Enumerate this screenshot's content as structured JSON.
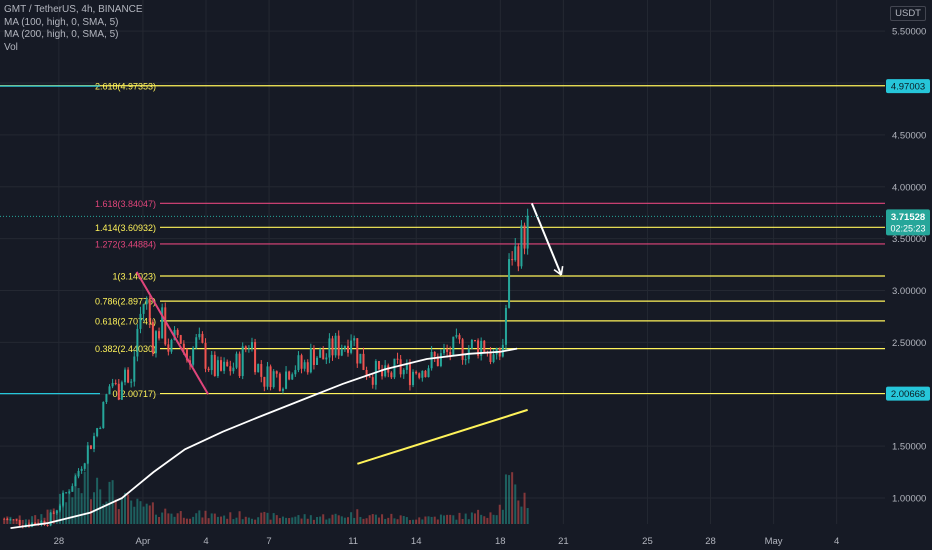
{
  "header": {
    "symbol_line": "GMT / TetherUS, 4h, BINANCE",
    "indicators": [
      "MA (100, high, 0, SMA, 5)",
      "MA (200, high, 0, SMA, 5)",
      "Vol"
    ],
    "currency": "USDT"
  },
  "colors": {
    "background": "#161a25",
    "grid": "#242832",
    "axis_text": "#b2b5be",
    "up_candle": "#26a69a",
    "down_candle": "#ef5350",
    "fib_yellow": "#fff35a",
    "fib_pink": "#e0457b",
    "cyan": "#26c6da",
    "white": "#ffffff"
  },
  "chart_data": {
    "type": "candlestick",
    "y_axis": {
      "ticks": [
        1.0,
        1.5,
        2.0,
        2.5,
        3.0,
        3.5,
        4.0,
        4.5,
        5.0,
        5.5
      ],
      "tick_labels": [
        "1.00000",
        "1.50000",
        "",
        "2.50000",
        "3.00000",
        "3.50000",
        "4.00000",
        "4.50000",
        "",
        "5.50000"
      ],
      "ylim": [
        0.75,
        5.8
      ]
    },
    "x_axis": {
      "ticks": [
        {
          "label": "28",
          "day": 28
        },
        {
          "label": "Apr",
          "day": 32
        },
        {
          "label": "4",
          "day": 35
        },
        {
          "label": "7",
          "day": 38
        },
        {
          "label": "11",
          "day": 42
        },
        {
          "label": "14",
          "day": 45
        },
        {
          "label": "18",
          "day": 49
        },
        {
          "label": "21",
          "day": 52
        },
        {
          "label": "25",
          "day": 56
        },
        {
          "label": "28",
          "day": 59
        },
        {
          "label": "May",
          "day": 62
        },
        {
          "label": "4",
          "day": 65
        }
      ],
      "xlim": [
        25.2,
        67.3
      ]
    },
    "fib_levels": [
      {
        "label": "2.618(4.97353)",
        "value": 4.97353,
        "color": "yellow"
      },
      {
        "label": "1.618(3.84047)",
        "value": 3.84047,
        "color": "pink"
      },
      {
        "label": "1.414(3.60932)",
        "value": 3.60932,
        "color": "yellow"
      },
      {
        "label": "1.272(3.44884)",
        "value": 3.44884,
        "color": "pink"
      },
      {
        "label": "1(3.14023)",
        "value": 3.14023,
        "color": "yellow"
      },
      {
        "label": "0.786(2.89776)",
        "value": 2.89776,
        "color": "yellow"
      },
      {
        "label": "0.618(2.70741)",
        "value": 2.70741,
        "color": "yellow"
      },
      {
        "label": "0.382(2.44030)",
        "value": 2.4403,
        "color": "yellow"
      },
      {
        "label": "0(2.00717)",
        "value": 2.00717,
        "color": "yellow"
      }
    ],
    "price_labels": [
      {
        "text": "4.97003",
        "value": 4.97003,
        "style": "cyan"
      },
      {
        "text": "2.00668",
        "value": 2.00668,
        "style": "cyan"
      },
      {
        "text": "3.71528",
        "subtext": "02:25:23",
        "value": 3.71528,
        "style": "last"
      }
    ],
    "drawings": [
      {
        "name": "pink-trendline",
        "points": [
          [
            31.7,
            3.18
          ],
          [
            35.1,
            2.0
          ]
        ],
        "color": "pink"
      },
      {
        "name": "white-arrow",
        "points": [
          [
            50.5,
            3.84
          ],
          [
            51.9,
            3.15
          ]
        ],
        "color": "white"
      },
      {
        "name": "yellow-trendline",
        "points": [
          [
            42.2,
            1.33
          ],
          [
            50.3,
            1.85
          ]
        ],
        "color": "yellow"
      }
    ],
    "ma_line": {
      "name": "MA (200, high, 0, SMA, 5)",
      "points": [
        [
          25.7,
          0.71
        ],
        [
          27.5,
          0.76
        ],
        [
          29.5,
          0.86
        ],
        [
          31.0,
          1.0
        ],
        [
          32.5,
          1.25
        ],
        [
          34.0,
          1.47
        ],
        [
          35.8,
          1.64
        ],
        [
          37.5,
          1.78
        ],
        [
          39.5,
          1.94
        ],
        [
          41.5,
          2.1
        ],
        [
          43.5,
          2.24
        ],
        [
          45.5,
          2.34
        ],
        [
          47.5,
          2.39
        ],
        [
          49.0,
          2.41
        ],
        [
          49.8,
          2.44
        ]
      ]
    },
    "candle_anchors": [
      [
        25.4,
        0.8
      ],
      [
        26.5,
        0.75
      ],
      [
        27.5,
        0.78
      ],
      [
        28.2,
        1.0
      ],
      [
        28.8,
        1.2
      ],
      [
        29.3,
        1.45
      ],
      [
        29.7,
        1.6
      ],
      [
        30.1,
        1.85
      ],
      [
        30.5,
        2.15
      ],
      [
        30.8,
        2.0
      ],
      [
        31.1,
        2.3
      ],
      [
        31.4,
        2.0
      ],
      [
        31.7,
        2.6
      ],
      [
        32.1,
        2.95
      ],
      [
        32.5,
        2.5
      ],
      [
        32.9,
        2.7
      ],
      [
        33.3,
        2.4
      ],
      [
        33.7,
        2.6
      ],
      [
        34.1,
        2.35
      ],
      [
        34.6,
        2.5
      ],
      [
        35.1,
        2.3
      ],
      [
        35.6,
        2.2
      ],
      [
        36.1,
        2.25
      ],
      [
        36.6,
        2.3
      ],
      [
        37.1,
        2.55
      ],
      [
        37.4,
        2.3
      ],
      [
        37.7,
        2.15
      ],
      [
        38.1,
        2.2
      ],
      [
        38.6,
        2.15
      ],
      [
        39.1,
        2.3
      ],
      [
        39.6,
        2.25
      ],
      [
        40.1,
        2.4
      ],
      [
        40.6,
        2.35
      ],
      [
        41.1,
        2.45
      ],
      [
        41.6,
        2.5
      ],
      [
        41.9,
        2.6
      ],
      [
        42.2,
        2.4
      ],
      [
        42.6,
        2.25
      ],
      [
        43.1,
        2.2
      ],
      [
        43.6,
        2.15
      ],
      [
        44.1,
        2.25
      ],
      [
        44.6,
        2.2
      ],
      [
        45.1,
        2.25
      ],
      [
        45.6,
        2.3
      ],
      [
        46.1,
        2.35
      ],
      [
        46.6,
        2.4
      ],
      [
        47.1,
        2.45
      ],
      [
        47.6,
        2.45
      ],
      [
        48.1,
        2.5
      ],
      [
        48.5,
        2.4
      ],
      [
        48.8,
        2.3
      ],
      [
        49.1,
        2.45
      ],
      [
        49.3,
        2.9
      ],
      [
        49.5,
        3.4
      ],
      [
        49.7,
        3.35
      ],
      [
        49.9,
        3.45
      ],
      [
        50.1,
        3.5
      ],
      [
        50.3,
        3.72
      ]
    ],
    "volume_anchors": [
      [
        25.4,
        0.06
      ],
      [
        27.0,
        0.07
      ],
      [
        28.2,
        0.25
      ],
      [
        28.8,
        0.38
      ],
      [
        29.3,
        0.5
      ],
      [
        29.7,
        0.55
      ],
      [
        30.1,
        0.45
      ],
      [
        30.5,
        0.35
      ],
      [
        31.1,
        0.25
      ],
      [
        31.7,
        0.2
      ],
      [
        32.1,
        0.18
      ],
      [
        32.5,
        0.16
      ],
      [
        33.5,
        0.12
      ],
      [
        35.0,
        0.1
      ],
      [
        36.0,
        0.09
      ],
      [
        37.0,
        0.1
      ],
      [
        38.5,
        0.08
      ],
      [
        40.0,
        0.08
      ],
      [
        41.5,
        0.09
      ],
      [
        42.2,
        0.12
      ],
      [
        43.0,
        0.09
      ],
      [
        44.5,
        0.07
      ],
      [
        46.0,
        0.08
      ],
      [
        47.5,
        0.09
      ],
      [
        48.5,
        0.14
      ],
      [
        49.1,
        0.2
      ],
      [
        49.3,
        0.48
      ],
      [
        49.6,
        0.38
      ],
      [
        49.9,
        0.3
      ],
      [
        50.3,
        0.28
      ]
    ],
    "candle_count": 170
  }
}
